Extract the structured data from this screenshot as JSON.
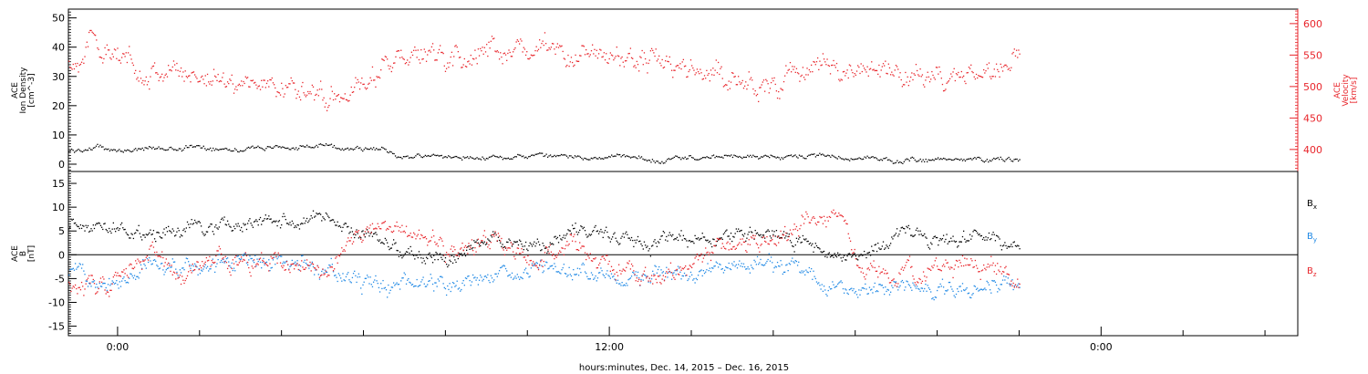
{
  "chart_data": [
    {
      "type": "scatter",
      "panel": "top",
      "left_axis": {
        "title_lines": [
          "ACE",
          "Ion Density",
          "[cm^-3]"
        ],
        "ticks": [
          0,
          10,
          20,
          30,
          40,
          50
        ],
        "ylim": [
          -2.5,
          53
        ],
        "color": "#000000"
      },
      "right_axis": {
        "title_lines": [
          "ACE",
          "Velocity",
          "[km/s]"
        ],
        "ticks": [
          400,
          450,
          500,
          550,
          600
        ],
        "ylim": [
          365,
          623
        ],
        "color": "#e8252b"
      },
      "series": [
        {
          "axis": "left",
          "color": "#000000",
          "knots": [
            [
              -1.2,
              4.5
            ],
            [
              -0.5,
              6
            ],
            [
              0,
              5
            ],
            [
              1,
              5.5
            ],
            [
              2,
              6
            ],
            [
              3,
              5.5
            ],
            [
              4,
              6
            ],
            [
              5,
              6.2
            ],
            [
              6,
              5.8
            ],
            [
              6.5,
              5
            ],
            [
              6.8,
              3
            ],
            [
              7.5,
              2.8
            ],
            [
              9,
              2.6
            ],
            [
              11,
              2.7
            ],
            [
              12.5,
              2.5
            ],
            [
              13.2,
              1.5
            ],
            [
              14,
              2.5
            ],
            [
              16,
              2.8
            ],
            [
              17,
              2.7
            ],
            [
              18.5,
              2
            ],
            [
              19,
              1.2
            ],
            [
              21,
              1.8
            ],
            [
              22,
              1.9
            ]
          ],
          "noise": 0.8,
          "count": 700
        },
        {
          "axis": "right",
          "color": "#e8252b",
          "knots": [
            [
              -1.2,
              535
            ],
            [
              -0.6,
              575
            ],
            [
              -0.3,
              560
            ],
            [
              0,
              540
            ],
            [
              1,
              525
            ],
            [
              2,
              520
            ],
            [
              3,
              510
            ],
            [
              4,
              500
            ],
            [
              4.8,
              490
            ],
            [
              5.3,
              495
            ],
            [
              6,
              500
            ],
            [
              6.6,
              540
            ],
            [
              7,
              545
            ],
            [
              8,
              545
            ],
            [
              9,
              555
            ],
            [
              10,
              560
            ],
            [
              11,
              555
            ],
            [
              12,
              545
            ],
            [
              13,
              545
            ],
            [
              14,
              530
            ],
            [
              15,
              510
            ],
            [
              16,
              500
            ],
            [
              16.5,
              520
            ],
            [
              17,
              530
            ],
            [
              18,
              530
            ],
            [
              19,
              525
            ],
            [
              19.5,
              510
            ],
            [
              20,
              520
            ],
            [
              21,
              510
            ],
            [
              21.5,
              525
            ],
            [
              22,
              555
            ]
          ],
          "noise": 18,
          "count": 900
        }
      ]
    },
    {
      "type": "scatter",
      "panel": "bottom",
      "left_axis": {
        "title_lines": [
          "ACE",
          "B",
          "[nT]"
        ],
        "ticks": [
          -15,
          -10,
          -5,
          0,
          5,
          10,
          15
        ],
        "ylim": [
          -17,
          17.5
        ],
        "color": "#000000"
      },
      "zero_line": true,
      "legend": [
        {
          "label": "B",
          "sub": "x",
          "color": "#000000"
        },
        {
          "label": "B",
          "sub": "y",
          "color": "#1e88e5"
        },
        {
          "label": "B",
          "sub": "z",
          "color": "#e8252b"
        }
      ],
      "series": [
        {
          "name": "Bx",
          "color": "#000000",
          "knots": [
            [
              -1.2,
              7
            ],
            [
              0,
              6
            ],
            [
              1,
              4
            ],
            [
              2,
              6
            ],
            [
              3,
              6
            ],
            [
              4,
              7
            ],
            [
              5,
              7.5
            ],
            [
              6,
              4
            ],
            [
              7,
              1
            ],
            [
              8,
              -1
            ],
            [
              9,
              3
            ],
            [
              10,
              2
            ],
            [
              11,
              4
            ],
            [
              12,
              4
            ],
            [
              13,
              3
            ],
            [
              14,
              3
            ],
            [
              15,
              4
            ],
            [
              16,
              5
            ],
            [
              17,
              1
            ],
            [
              18,
              -1
            ],
            [
              19,
              4
            ],
            [
              20,
              3
            ],
            [
              21,
              4
            ],
            [
              22,
              3
            ]
          ],
          "noise": 1.5,
          "count": 900
        },
        {
          "name": "By",
          "color": "#1e88e5",
          "knots": [
            [
              -1.2,
              -3
            ],
            [
              0,
              -5
            ],
            [
              1,
              -1
            ],
            [
              2,
              -3
            ],
            [
              3,
              -1
            ],
            [
              4,
              -2
            ],
            [
              5,
              -3
            ],
            [
              6,
              -6
            ],
            [
              7,
              -6
            ],
            [
              8,
              -7
            ],
            [
              9,
              -5
            ],
            [
              10,
              -3
            ],
            [
              11,
              -3
            ],
            [
              12,
              -3
            ],
            [
              13,
              -5
            ],
            [
              14,
              -4
            ],
            [
              15,
              -3
            ],
            [
              16,
              -2
            ],
            [
              17,
              -5
            ],
            [
              18,
              -7
            ],
            [
              19,
              -7
            ],
            [
              20,
              -7
            ],
            [
              21,
              -7
            ],
            [
              22,
              -6
            ]
          ],
          "noise": 1.8,
          "count": 900
        },
        {
          "name": "Bz",
          "color": "#e8252b",
          "knots": [
            [
              -1.2,
              -5
            ],
            [
              -0.5,
              -7
            ],
            [
              0,
              -5
            ],
            [
              0.8,
              0
            ],
            [
              1.5,
              -5
            ],
            [
              2.5,
              1
            ],
            [
              3,
              -3
            ],
            [
              4,
              -1
            ],
            [
              5,
              -3
            ],
            [
              6,
              4
            ],
            [
              7,
              5
            ],
            [
              8,
              1
            ],
            [
              9,
              4
            ],
            [
              10,
              -1
            ],
            [
              11,
              3
            ],
            [
              12,
              -3
            ],
            [
              13,
              -5
            ],
            [
              14,
              -2
            ],
            [
              15,
              3
            ],
            [
              16,
              3
            ],
            [
              16.5,
              6
            ],
            [
              17.2,
              7
            ],
            [
              17.6,
              9
            ],
            [
              18,
              -1
            ],
            [
              19,
              -4
            ],
            [
              20,
              -2
            ],
            [
              21,
              -2
            ],
            [
              22,
              -5
            ]
          ],
          "noise": 2,
          "count": 900
        }
      ]
    }
  ],
  "x_axis": {
    "range": [
      -1.2,
      28.8
    ],
    "major_ticks": [
      0,
      12,
      24
    ],
    "major_labels": [
      "0:00",
      "12:00",
      "0:00"
    ],
    "label": "hours:minutes, Dec. 14, 2015 – Dec. 16, 2015"
  }
}
